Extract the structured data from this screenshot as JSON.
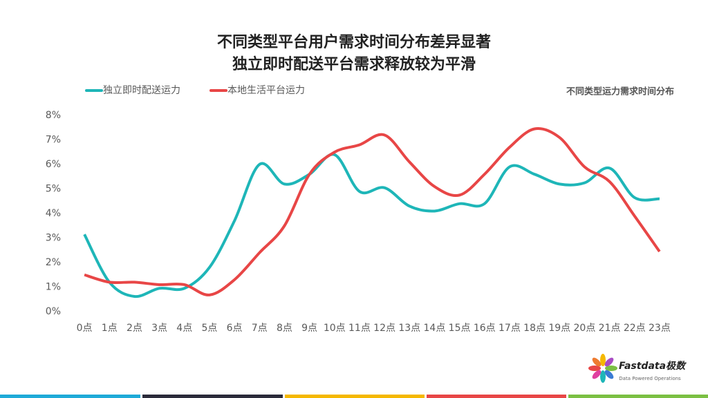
{
  "chart_data": {
    "type": "line",
    "title": "不同类型平台用户需求时间分布差异显著",
    "subtitle": "独立即时配送平台需求释放较为平滑",
    "annotation": "不同类型运力需求时间分布",
    "categories": [
      "0点",
      "1点",
      "2点",
      "3点",
      "4点",
      "5点",
      "6点",
      "7点",
      "8点",
      "9点",
      "10点",
      "11点",
      "12点",
      "13点",
      "14点",
      "15点",
      "16点",
      "17点",
      "18点",
      "19点",
      "20点",
      "21点",
      "22点",
      "23点"
    ],
    "series": [
      {
        "name": "独立即时配送运力",
        "color": "#1eb6b8",
        "values": [
          3.15,
          1.2,
          0.62,
          0.95,
          0.95,
          1.8,
          3.7,
          6.0,
          5.2,
          5.6,
          6.4,
          4.9,
          5.05,
          4.3,
          4.1,
          4.4,
          4.4,
          5.9,
          5.6,
          5.2,
          5.25,
          5.85,
          4.65,
          4.6
        ]
      },
      {
        "name": "本地生活平台运力",
        "color": "#e84646",
        "values": [
          1.5,
          1.2,
          1.2,
          1.1,
          1.1,
          0.68,
          1.3,
          2.4,
          3.5,
          5.6,
          6.5,
          6.8,
          7.2,
          6.1,
          5.1,
          4.75,
          5.6,
          6.7,
          7.45,
          7.1,
          5.9,
          5.3,
          3.9,
          2.45
        ]
      }
    ],
    "ylim": [
      0,
      8
    ],
    "yticks": [
      {
        "value": 0,
        "label": "0%"
      },
      {
        "value": 1,
        "label": "1%"
      },
      {
        "value": 2,
        "label": "2%"
      },
      {
        "value": 3,
        "label": "3%"
      },
      {
        "value": 4,
        "label": "4%"
      },
      {
        "value": 5,
        "label": "5%"
      },
      {
        "value": 6,
        "label": "6%"
      },
      {
        "value": 7,
        "label": "7%"
      },
      {
        "value": 8,
        "label": "8%"
      }
    ],
    "grid": false,
    "legend": "top-left"
  },
  "logo": {
    "name": "Fastdata极数",
    "tagline": "Data Powered Operations"
  }
}
